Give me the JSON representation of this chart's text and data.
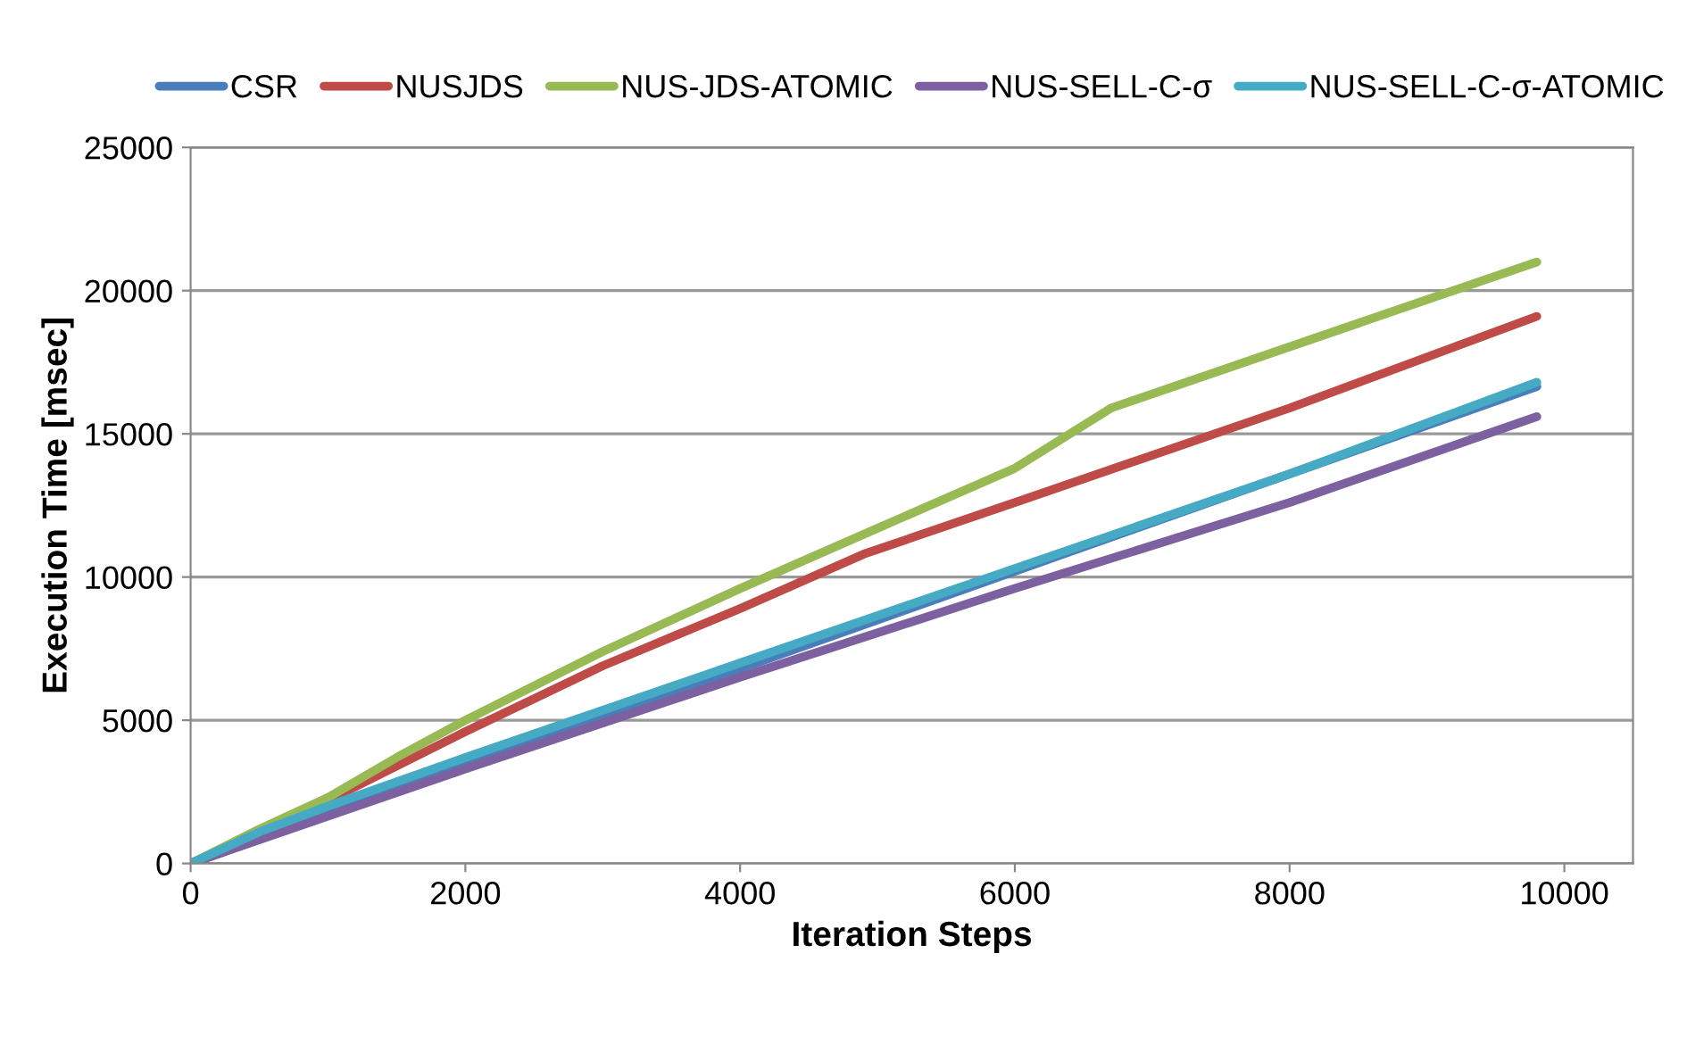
{
  "chart_data": {
    "type": "line",
    "xlabel": "Iteration Steps",
    "ylabel": "Execution Time [msec]",
    "xlim": [
      0,
      10500
    ],
    "ylim": [
      0,
      25000
    ],
    "xticks": [
      0,
      2000,
      4000,
      6000,
      8000,
      10000
    ],
    "yticks": [
      0,
      5000,
      10000,
      15000,
      20000,
      25000
    ],
    "grid": "y",
    "legend": "top",
    "marker": "none",
    "line_style": "solid",
    "series": [
      {
        "name": "CSR",
        "color": "#4a7ebb",
        "x": [
          0,
          2000,
          4000,
          6000,
          8000,
          9800
        ],
        "values": [
          0,
          3400,
          6800,
          10200,
          13600,
          16650
        ]
      },
      {
        "name": "NUSJDS",
        "color": "#be4b48",
        "x": [
          0,
          1000,
          1500,
          2000,
          3000,
          4000,
          4900,
          6000,
          8000,
          9800
        ],
        "values": [
          0,
          2200,
          3400,
          4600,
          6900,
          8900,
          10800,
          12600,
          15900,
          19100
        ]
      },
      {
        "name": "NUS-JDS-ATOMIC",
        "color": "#98b954",
        "x": [
          0,
          500,
          1000,
          1500,
          2000,
          3000,
          4000,
          5000,
          6000,
          6700,
          9800
        ],
        "values": [
          0,
          1200,
          2300,
          3700,
          5000,
          7400,
          9600,
          11700,
          13800,
          15900,
          21000
        ]
      },
      {
        "name": "NUS-SELL-C-σ",
        "color": "#7d60a0",
        "x": [
          0,
          2000,
          4000,
          6000,
          8000,
          9800
        ],
        "values": [
          0,
          3300,
          6500,
          9600,
          12600,
          15600
        ]
      },
      {
        "name": "NUS-SELL-C-σ-ATOMIC",
        "color": "#46aac5",
        "x": [
          0,
          500,
          1000,
          2000,
          4000,
          6000,
          8000,
          9800
        ],
        "values": [
          0,
          1100,
          2000,
          3700,
          7000,
          10300,
          13600,
          16800
        ]
      }
    ]
  }
}
